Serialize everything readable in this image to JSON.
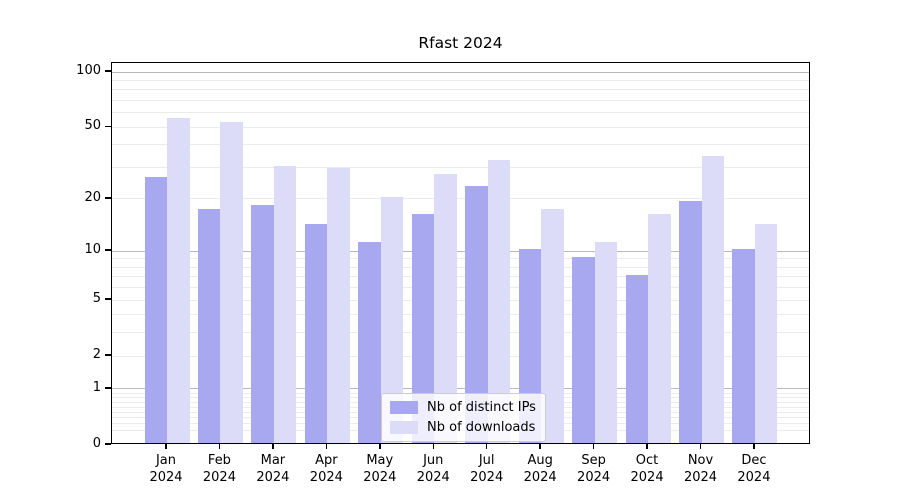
{
  "title": "Rfast 2024",
  "chart_data": {
    "type": "bar",
    "title": "Rfast 2024",
    "categories": [
      "Jan 2024",
      "Feb 2024",
      "Mar 2024",
      "Apr 2024",
      "May 2024",
      "Jun 2024",
      "Jul 2024",
      "Aug 2024",
      "Sep 2024",
      "Oct 2024",
      "Nov 2024",
      "Dec 2024"
    ],
    "series": [
      {
        "name": "Nb of distinct IPs",
        "color": "#a8a8f0",
        "values": [
          26,
          17,
          18,
          14,
          11,
          16,
          23,
          10,
          9,
          7,
          19,
          10
        ]
      },
      {
        "name": "Nb of downloads",
        "color": "#dcdcf8",
        "values": [
          55,
          52,
          30,
          29,
          20,
          27,
          32,
          17,
          11,
          16,
          34,
          14
        ]
      }
    ],
    "xlabel": "",
    "ylabel": "",
    "yscale": "log1p",
    "ylim": [
      0,
      112
    ],
    "yticks": [
      100,
      50,
      20,
      10,
      5,
      2,
      1,
      0
    ],
    "grid": "on",
    "grid_major_values": [
      1,
      10,
      100
    ],
    "grid_minor_values": [
      0.2,
      0.3,
      0.4,
      0.5,
      0.6,
      0.7,
      0.8,
      0.9,
      2,
      3,
      4,
      5,
      6,
      7,
      8,
      9,
      20,
      30,
      40,
      50,
      60,
      70,
      80,
      90
    ],
    "legend_position": "lower center"
  },
  "legend": {
    "items": [
      {
        "label": "Nb of distinct IPs",
        "color": "#a8a8f0"
      },
      {
        "label": "Nb of downloads",
        "color": "#dcdcf8"
      }
    ]
  },
  "colors": {
    "background": "#ffffff",
    "spine": "#000000",
    "grid_major": "#b8b8b8",
    "grid_minor": "#ebebeb",
    "bar_ips": "#a8a8f0",
    "bar_downloads": "#dcdcf8",
    "text": "#000000"
  }
}
